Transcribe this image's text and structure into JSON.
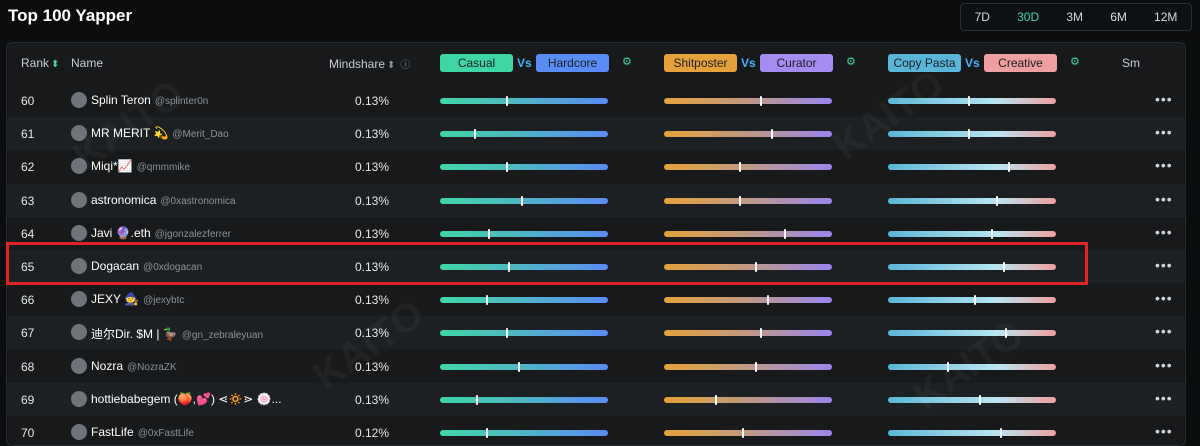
{
  "page": {
    "title": "Top 100 Yapper"
  },
  "periods": [
    {
      "label": "7D",
      "active": false
    },
    {
      "label": "30D",
      "active": true
    },
    {
      "label": "3M",
      "active": false
    },
    {
      "label": "6M",
      "active": false
    },
    {
      "label": "12M",
      "active": false
    }
  ],
  "header": {
    "rank": "Rank",
    "name": "Name",
    "mindshare": "Mindshare",
    "scales": [
      {
        "left": "Casual",
        "vs": "Vs",
        "right": "Hardcore",
        "left_color": "#3fd6a6",
        "right_color": "#5a8cf5"
      },
      {
        "left": "Shitposter",
        "vs": "Vs",
        "right": "Curator",
        "left_color": "#e6a13a",
        "right_color": "#a48cf2"
      },
      {
        "left": "Copy Pasta",
        "vs": "Vs",
        "right": "Creative",
        "left_color": "#5ab6d8",
        "right_color": "#ef9f9f"
      }
    ],
    "last": "Sm"
  },
  "watermark": "KAITO",
  "rows": [
    {
      "rank": "60",
      "name": "Splin Teron",
      "handle": "@splinter0n",
      "mindshare": "0.13%",
      "scores": [
        0.4,
        0.58,
        0.48
      ]
    },
    {
      "rank": "61",
      "name": "MR MERIT 💫",
      "handle": "@Merit_Dao",
      "mindshare": "0.13%",
      "scores": [
        0.21,
        0.64,
        0.48
      ]
    },
    {
      "rank": "62",
      "name": "Miqi*📈",
      "handle": "@qmmmike",
      "mindshare": "0.13%",
      "scores": [
        0.4,
        0.45,
        0.72
      ]
    },
    {
      "rank": "63",
      "name": "astronomica",
      "handle": "@0xastronomica",
      "mindshare": "0.13%",
      "scores": [
        0.49,
        0.45,
        0.65
      ]
    },
    {
      "rank": "64",
      "name": "Javi 🔮.eth",
      "handle": "@jgonzalezferrer",
      "mindshare": "0.13%",
      "scores": [
        0.29,
        0.72,
        0.62
      ]
    },
    {
      "rank": "65",
      "name": "Dogacan",
      "handle": "@0xdogacan",
      "mindshare": "0.13%",
      "scores": [
        0.41,
        0.55,
        0.69
      ]
    },
    {
      "rank": "66",
      "name": "JEXY 🧙",
      "handle": "@jexybtc",
      "mindshare": "0.13%",
      "scores": [
        0.28,
        0.62,
        0.52
      ]
    },
    {
      "rank": "67",
      "name": "迪尔Dir. $M | 🦆",
      "handle": "@gn_zebraleyuan",
      "mindshare": "0.13%",
      "scores": [
        0.4,
        0.58,
        0.7
      ]
    },
    {
      "rank": "68",
      "name": "Nozra",
      "handle": "@NozraZK",
      "mindshare": "0.13%",
      "scores": [
        0.47,
        0.55,
        0.36
      ]
    },
    {
      "rank": "69",
      "name": "hottiebabegem (🍑,💕) ⋖🔅⋗ 🍥...",
      "handle": "",
      "mindshare": "0.13%",
      "scores": [
        0.22,
        0.31,
        0.55
      ]
    },
    {
      "rank": "70",
      "name": "FastLife",
      "handle": "@0xFastLife",
      "mindshare": "0.12%",
      "scores": [
        0.28,
        0.47,
        0.67
      ]
    }
  ],
  "highlighted_rank": "65",
  "more_label": "•••"
}
